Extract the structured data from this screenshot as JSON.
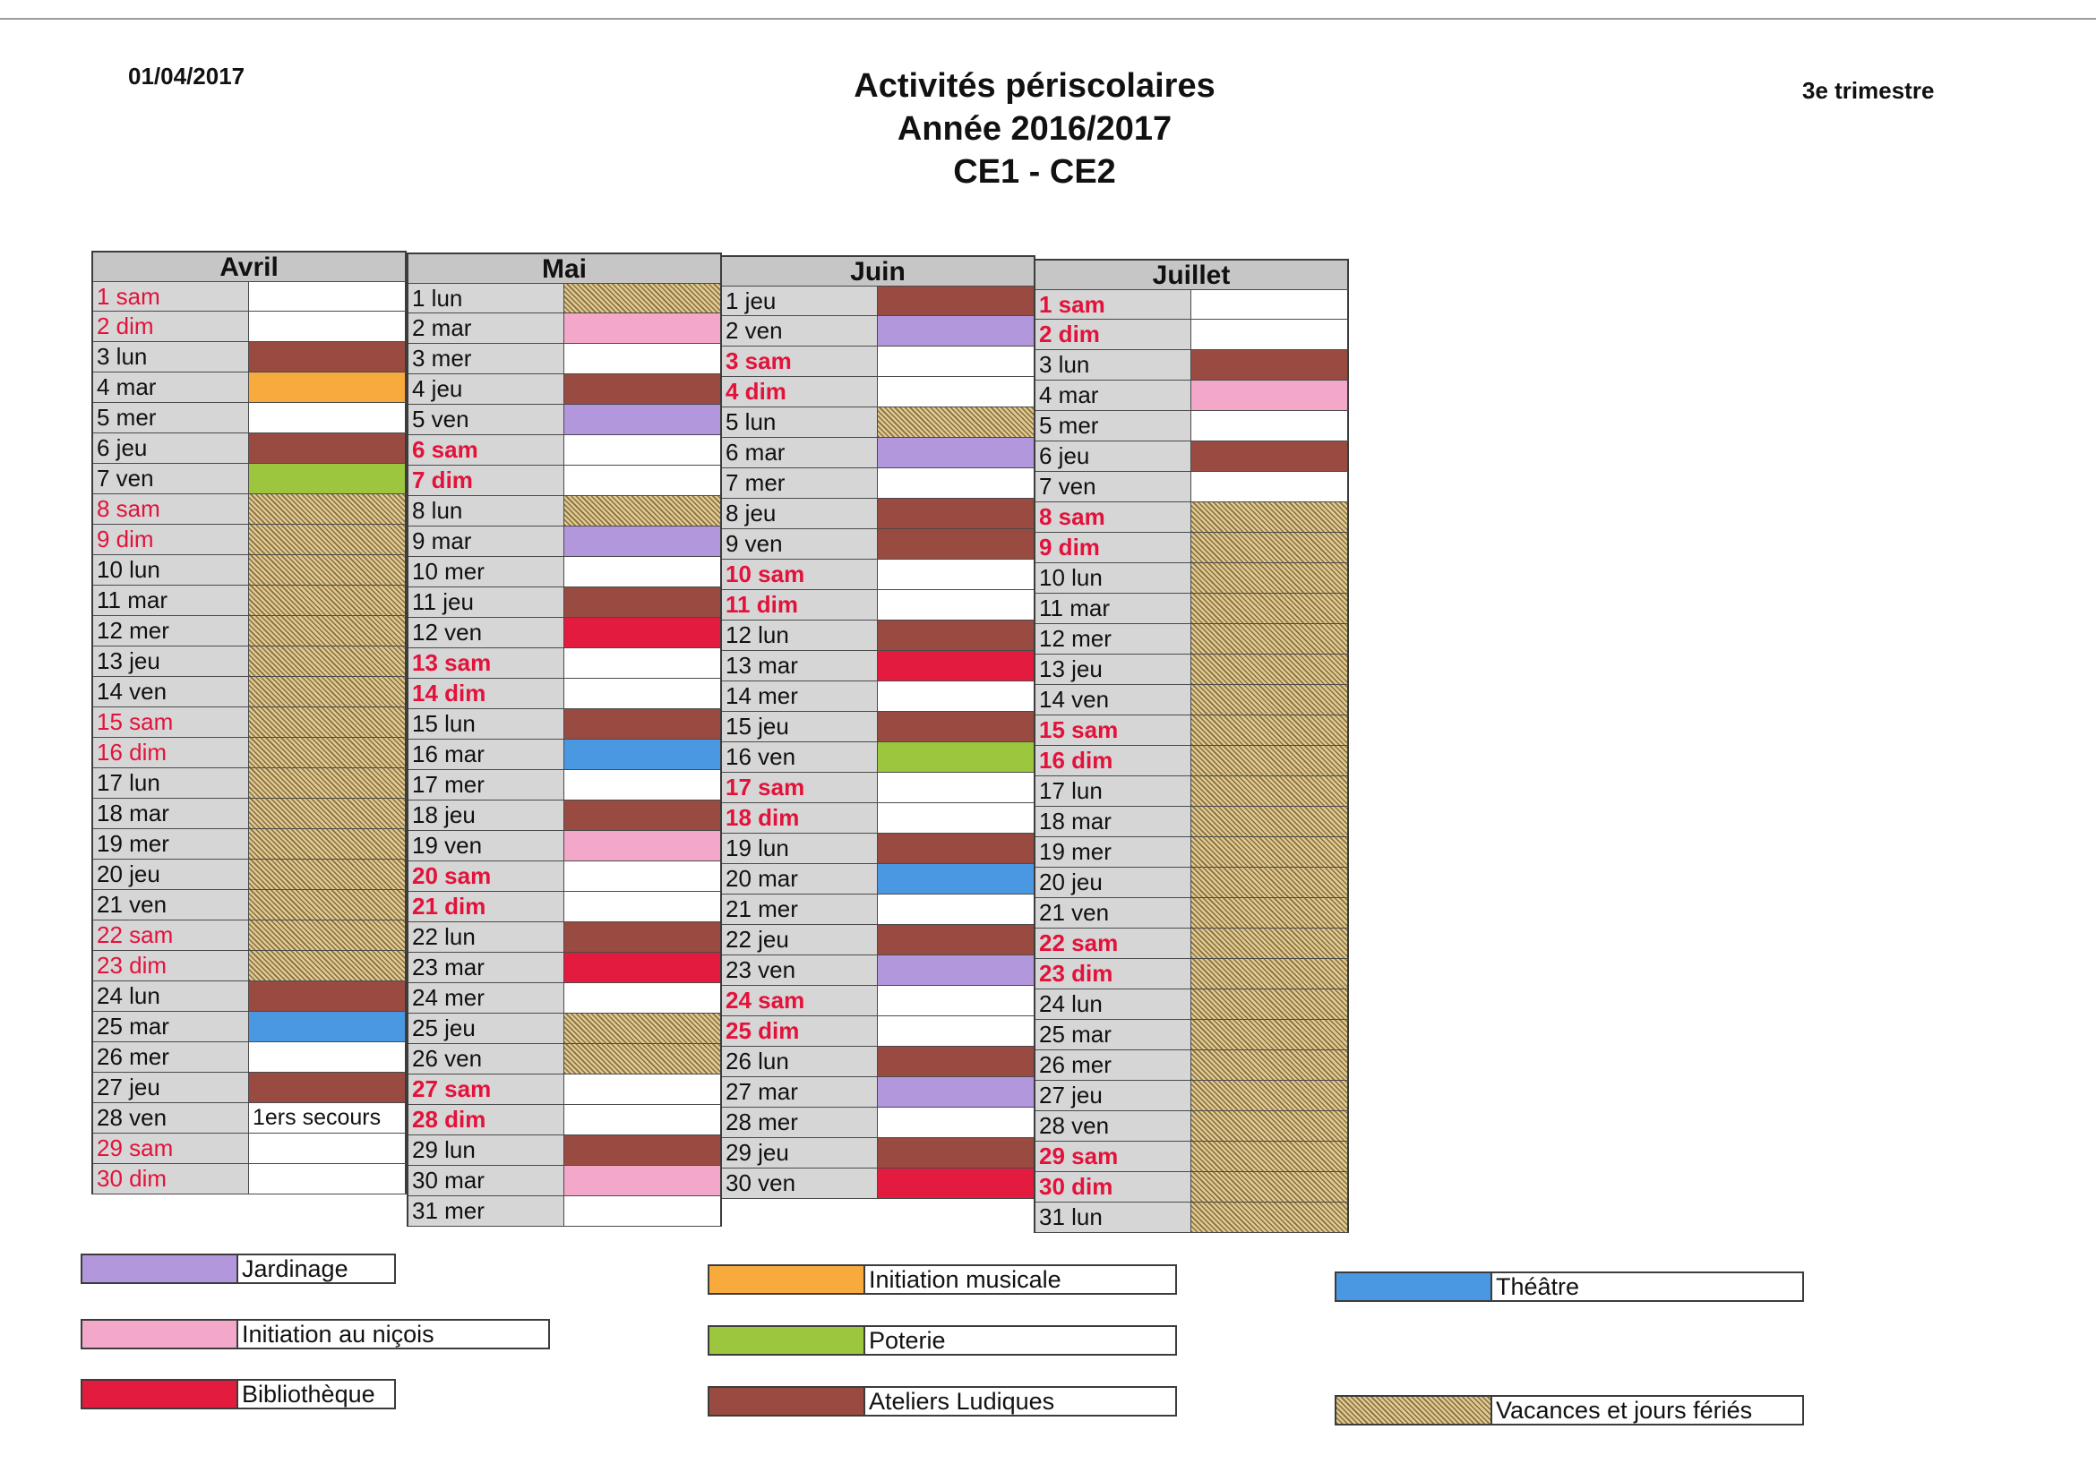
{
  "header": {
    "date": "01/04/2017",
    "title_line1": "Activités périscolaires",
    "title_line2": "Année 2016/2017",
    "title_line3": "CE1 - CE2",
    "trimester": "3e trimestre"
  },
  "colors": {
    "jardinage": "#b397dc",
    "nicois": "#f3a7c9",
    "bibliotheque": "#e31b3e",
    "musicale": "#f9aa3c",
    "poterie": "#9dc63f",
    "ateliers": "#994b41",
    "theatre": "#4b98e2",
    "vacances": "hatch",
    "empty": "#ffffff"
  },
  "months": [
    {
      "name": "Avril",
      "days": [
        {
          "label": "1 sam",
          "we": true,
          "light": true,
          "act": "empty"
        },
        {
          "label": "2 dim",
          "we": true,
          "light": true,
          "act": "empty"
        },
        {
          "label": "3 lun",
          "act": "ateliers"
        },
        {
          "label": "4 mar",
          "act": "musicale"
        },
        {
          "label": "5 mer",
          "act": "empty"
        },
        {
          "label": "6 jeu",
          "act": "ateliers"
        },
        {
          "label": "7 ven",
          "act": "poterie"
        },
        {
          "label": "8 sam",
          "we": true,
          "light": true,
          "act": "vacances"
        },
        {
          "label": "9 dim",
          "we": true,
          "light": true,
          "act": "vacances"
        },
        {
          "label": "10 lun",
          "act": "vacances"
        },
        {
          "label": "11 mar",
          "act": "vacances"
        },
        {
          "label": "12 mer",
          "act": "vacances"
        },
        {
          "label": "13 jeu",
          "act": "vacances"
        },
        {
          "label": "14 ven",
          "act": "vacances"
        },
        {
          "label": "15 sam",
          "we": true,
          "light": true,
          "act": "vacances"
        },
        {
          "label": "16 dim",
          "we": true,
          "light": true,
          "act": "vacances"
        },
        {
          "label": "17 lun",
          "act": "vacances"
        },
        {
          "label": "18 mar",
          "act": "vacances"
        },
        {
          "label": "19 mer",
          "act": "vacances"
        },
        {
          "label": "20 jeu",
          "act": "vacances"
        },
        {
          "label": "21 ven",
          "act": "vacances"
        },
        {
          "label": "22 sam",
          "we": true,
          "light": true,
          "act": "vacances"
        },
        {
          "label": "23 dim",
          "we": true,
          "light": true,
          "act": "vacances"
        },
        {
          "label": "24 lun",
          "act": "ateliers"
        },
        {
          "label": "25 mar",
          "act": "theatre"
        },
        {
          "label": "26 mer",
          "act": "empty"
        },
        {
          "label": "27 jeu",
          "act": "ateliers"
        },
        {
          "label": "28 ven",
          "act": "empty",
          "text": "1ers secours"
        },
        {
          "label": "29 sam",
          "we": true,
          "light": true,
          "act": "empty"
        },
        {
          "label": "30 dim",
          "we": true,
          "light": true,
          "act": "empty"
        }
      ]
    },
    {
      "name": "Mai",
      "days": [
        {
          "label": "1 lun",
          "act": "vacances"
        },
        {
          "label": "2 mar",
          "act": "nicois"
        },
        {
          "label": "3 mer",
          "act": "empty"
        },
        {
          "label": "4 jeu",
          "act": "ateliers"
        },
        {
          "label": "5 ven",
          "act": "jardinage"
        },
        {
          "label": "6 sam",
          "we": true,
          "act": "empty"
        },
        {
          "label": "7 dim",
          "we": true,
          "act": "empty"
        },
        {
          "label": "8 lun",
          "act": "vacances"
        },
        {
          "label": "9 mar",
          "act": "jardinage"
        },
        {
          "label": "10 mer",
          "act": "empty"
        },
        {
          "label": "11 jeu",
          "act": "ateliers"
        },
        {
          "label": "12 ven",
          "act": "bibliotheque"
        },
        {
          "label": "13 sam",
          "we": true,
          "act": "empty"
        },
        {
          "label": "14 dim",
          "we": true,
          "act": "empty"
        },
        {
          "label": "15 lun",
          "act": "ateliers"
        },
        {
          "label": "16 mar",
          "act": "theatre"
        },
        {
          "label": "17 mer",
          "act": "empty"
        },
        {
          "label": "18 jeu",
          "act": "ateliers"
        },
        {
          "label": "19 ven",
          "act": "nicois"
        },
        {
          "label": "20 sam",
          "we": true,
          "act": "empty"
        },
        {
          "label": "21 dim",
          "we": true,
          "act": "empty"
        },
        {
          "label": "22 lun",
          "act": "ateliers"
        },
        {
          "label": "23 mar",
          "act": "bibliotheque"
        },
        {
          "label": "24 mer",
          "act": "empty"
        },
        {
          "label": "25 jeu",
          "act": "vacances"
        },
        {
          "label": "26 ven",
          "act": "vacances"
        },
        {
          "label": "27 sam",
          "we": true,
          "act": "empty"
        },
        {
          "label": "28 dim",
          "we": true,
          "act": "empty"
        },
        {
          "label": "29 lun",
          "act": "ateliers"
        },
        {
          "label": "30 mar",
          "act": "nicois"
        },
        {
          "label": "31 mer",
          "act": "empty"
        }
      ]
    },
    {
      "name": "Juin",
      "days": [
        {
          "label": "1 jeu",
          "act": "ateliers"
        },
        {
          "label": "2 ven",
          "act": "jardinage"
        },
        {
          "label": "3 sam",
          "we": true,
          "act": "empty"
        },
        {
          "label": "4 dim",
          "we": true,
          "act": "empty"
        },
        {
          "label": "5 lun",
          "act": "vacances"
        },
        {
          "label": "6 mar",
          "act": "jardinage"
        },
        {
          "label": "7 mer",
          "act": "empty"
        },
        {
          "label": "8 jeu",
          "act": "ateliers"
        },
        {
          "label": "9 ven",
          "act": "ateliers"
        },
        {
          "label": "10 sam",
          "we": true,
          "act": "empty"
        },
        {
          "label": "11 dim",
          "we": true,
          "act": "empty"
        },
        {
          "label": "12 lun",
          "act": "ateliers"
        },
        {
          "label": "13 mar",
          "act": "bibliotheque"
        },
        {
          "label": "14 mer",
          "act": "empty"
        },
        {
          "label": "15 jeu",
          "act": "ateliers"
        },
        {
          "label": "16 ven",
          "act": "poterie"
        },
        {
          "label": "17 sam",
          "we": true,
          "act": "empty"
        },
        {
          "label": "18 dim",
          "we": true,
          "act": "empty"
        },
        {
          "label": "19 lun",
          "act": "ateliers"
        },
        {
          "label": "20 mar",
          "act": "theatre"
        },
        {
          "label": "21 mer",
          "act": "empty"
        },
        {
          "label": "22 jeu",
          "act": "ateliers"
        },
        {
          "label": "23 ven",
          "act": "jardinage"
        },
        {
          "label": "24 sam",
          "we": true,
          "act": "empty"
        },
        {
          "label": "25 dim",
          "we": true,
          "act": "empty"
        },
        {
          "label": "26 lun",
          "act": "ateliers"
        },
        {
          "label": "27 mar",
          "act": "jardinage"
        },
        {
          "label": "28 mer",
          "act": "empty"
        },
        {
          "label": "29 jeu",
          "act": "ateliers"
        },
        {
          "label": "30 ven",
          "act": "bibliotheque"
        }
      ]
    },
    {
      "name": "Juillet",
      "days": [
        {
          "label": "1 sam",
          "we": true,
          "act": "empty"
        },
        {
          "label": "2 dim",
          "we": true,
          "act": "empty"
        },
        {
          "label": "3 lun",
          "act": "ateliers"
        },
        {
          "label": "4 mar",
          "act": "nicois"
        },
        {
          "label": "5 mer",
          "act": "empty"
        },
        {
          "label": "6 jeu",
          "act": "ateliers"
        },
        {
          "label": "7 ven",
          "act": "empty"
        },
        {
          "label": "8 sam",
          "we": true,
          "act": "vacances"
        },
        {
          "label": "9 dim",
          "we": true,
          "act": "vacances"
        },
        {
          "label": "10 lun",
          "act": "vacances"
        },
        {
          "label": "11 mar",
          "act": "vacances"
        },
        {
          "label": "12 mer",
          "act": "vacances"
        },
        {
          "label": "13 jeu",
          "act": "vacances"
        },
        {
          "label": "14 ven",
          "act": "vacances"
        },
        {
          "label": "15 sam",
          "we": true,
          "act": "vacances"
        },
        {
          "label": "16 dim",
          "we": true,
          "act": "vacances"
        },
        {
          "label": "17 lun",
          "act": "vacances"
        },
        {
          "label": "18 mar",
          "act": "vacances"
        },
        {
          "label": "19 mer",
          "act": "vacances"
        },
        {
          "label": "20 jeu",
          "act": "vacances"
        },
        {
          "label": "21 ven",
          "act": "vacances"
        },
        {
          "label": "22 sam",
          "we": true,
          "act": "vacances"
        },
        {
          "label": "23 dim",
          "we": true,
          "act": "vacances"
        },
        {
          "label": "24 lun",
          "act": "vacances"
        },
        {
          "label": "25 mar",
          "act": "vacances"
        },
        {
          "label": "26 mer",
          "act": "vacances"
        },
        {
          "label": "27 jeu",
          "act": "vacances"
        },
        {
          "label": "28 ven",
          "act": "vacances"
        },
        {
          "label": "29 sam",
          "we": true,
          "act": "vacances"
        },
        {
          "label": "30 dim",
          "we": true,
          "act": "vacances"
        },
        {
          "label": "31 lun",
          "act": "vacances"
        }
      ]
    }
  ],
  "legend": [
    {
      "key": "jardinage",
      "label": "Jardinage"
    },
    {
      "key": "nicois",
      "label": "Initiation au niçois"
    },
    {
      "key": "bibliotheque",
      "label": "Bibliothèque"
    },
    {
      "key": "musicale",
      "label": "Initiation musicale"
    },
    {
      "key": "poterie",
      "label": "Poterie"
    },
    {
      "key": "ateliers",
      "label": "Ateliers Ludiques"
    },
    {
      "key": "theatre",
      "label": "Théâtre"
    },
    {
      "key": "vacances",
      "label": "Vacances et jours fériés"
    }
  ]
}
